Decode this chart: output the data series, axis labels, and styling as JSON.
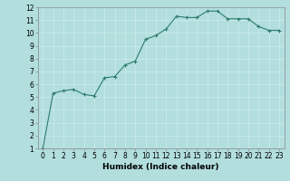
{
  "x": [
    0,
    1,
    2,
    3,
    4,
    5,
    6,
    7,
    8,
    9,
    10,
    11,
    12,
    13,
    14,
    15,
    16,
    17,
    18,
    19,
    20,
    21,
    22,
    23
  ],
  "y": [
    1.0,
    5.3,
    5.5,
    5.6,
    5.2,
    5.1,
    6.5,
    6.6,
    7.5,
    7.8,
    9.5,
    9.8,
    10.3,
    11.3,
    11.2,
    11.2,
    11.7,
    11.7,
    11.1,
    11.1,
    11.1,
    10.5,
    10.2,
    10.2
  ],
  "xlim": [
    -0.5,
    23.5
  ],
  "ylim": [
    1,
    12
  ],
  "yticks": [
    1,
    2,
    3,
    4,
    5,
    6,
    7,
    8,
    9,
    10,
    11,
    12
  ],
  "xticks": [
    0,
    1,
    2,
    3,
    4,
    5,
    6,
    7,
    8,
    9,
    10,
    11,
    12,
    13,
    14,
    15,
    16,
    17,
    18,
    19,
    20,
    21,
    22,
    23
  ],
  "xlabel": "Humidex (Indice chaleur)",
  "line_color": "#2e7d6e",
  "marker_color": "#2e7d6e",
  "bg_color": "#b2dede",
  "grid_color": "#d0ecec",
  "fig_bg": "#b2dede",
  "xlabel_fontsize": 6.5,
  "tick_fontsize": 5.5
}
